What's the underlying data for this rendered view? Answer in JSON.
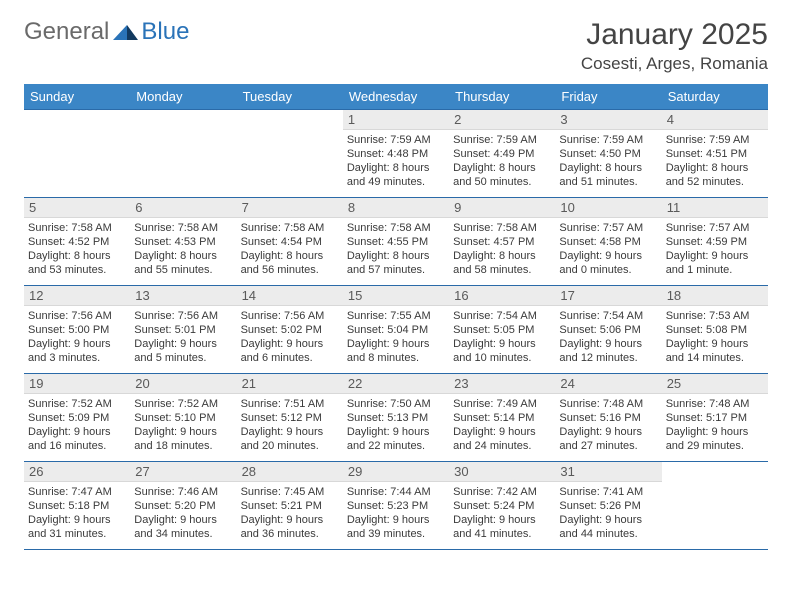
{
  "logo": {
    "general": "General",
    "blue": "Blue"
  },
  "header": {
    "month_title": "January 2025",
    "location": "Cosesti, Arges, Romania"
  },
  "colors": {
    "header_bg": "#3b86c6",
    "header_text": "#ffffff",
    "rule": "#2a6aa8",
    "daynum_bg": "#ececec",
    "body_text": "#3a3a3a",
    "logo_blue": "#2a73b8",
    "logo_gray": "#6a6a6a"
  },
  "daynames": [
    "Sunday",
    "Monday",
    "Tuesday",
    "Wednesday",
    "Thursday",
    "Friday",
    "Saturday"
  ],
  "weeks": [
    [
      null,
      null,
      null,
      {
        "n": "1",
        "sr": "7:59 AM",
        "ss": "4:48 PM",
        "dl": "8 hours and 49 minutes."
      },
      {
        "n": "2",
        "sr": "7:59 AM",
        "ss": "4:49 PM",
        "dl": "8 hours and 50 minutes."
      },
      {
        "n": "3",
        "sr": "7:59 AM",
        "ss": "4:50 PM",
        "dl": "8 hours and 51 minutes."
      },
      {
        "n": "4",
        "sr": "7:59 AM",
        "ss": "4:51 PM",
        "dl": "8 hours and 52 minutes."
      }
    ],
    [
      {
        "n": "5",
        "sr": "7:58 AM",
        "ss": "4:52 PM",
        "dl": "8 hours and 53 minutes."
      },
      {
        "n": "6",
        "sr": "7:58 AM",
        "ss": "4:53 PM",
        "dl": "8 hours and 55 minutes."
      },
      {
        "n": "7",
        "sr": "7:58 AM",
        "ss": "4:54 PM",
        "dl": "8 hours and 56 minutes."
      },
      {
        "n": "8",
        "sr": "7:58 AM",
        "ss": "4:55 PM",
        "dl": "8 hours and 57 minutes."
      },
      {
        "n": "9",
        "sr": "7:58 AM",
        "ss": "4:57 PM",
        "dl": "8 hours and 58 minutes."
      },
      {
        "n": "10",
        "sr": "7:57 AM",
        "ss": "4:58 PM",
        "dl": "9 hours and 0 minutes."
      },
      {
        "n": "11",
        "sr": "7:57 AM",
        "ss": "4:59 PM",
        "dl": "9 hours and 1 minute."
      }
    ],
    [
      {
        "n": "12",
        "sr": "7:56 AM",
        "ss": "5:00 PM",
        "dl": "9 hours and 3 minutes."
      },
      {
        "n": "13",
        "sr": "7:56 AM",
        "ss": "5:01 PM",
        "dl": "9 hours and 5 minutes."
      },
      {
        "n": "14",
        "sr": "7:56 AM",
        "ss": "5:02 PM",
        "dl": "9 hours and 6 minutes."
      },
      {
        "n": "15",
        "sr": "7:55 AM",
        "ss": "5:04 PM",
        "dl": "9 hours and 8 minutes."
      },
      {
        "n": "16",
        "sr": "7:54 AM",
        "ss": "5:05 PM",
        "dl": "9 hours and 10 minutes."
      },
      {
        "n": "17",
        "sr": "7:54 AM",
        "ss": "5:06 PM",
        "dl": "9 hours and 12 minutes."
      },
      {
        "n": "18",
        "sr": "7:53 AM",
        "ss": "5:08 PM",
        "dl": "9 hours and 14 minutes."
      }
    ],
    [
      {
        "n": "19",
        "sr": "7:52 AM",
        "ss": "5:09 PM",
        "dl": "9 hours and 16 minutes."
      },
      {
        "n": "20",
        "sr": "7:52 AM",
        "ss": "5:10 PM",
        "dl": "9 hours and 18 minutes."
      },
      {
        "n": "21",
        "sr": "7:51 AM",
        "ss": "5:12 PM",
        "dl": "9 hours and 20 minutes."
      },
      {
        "n": "22",
        "sr": "7:50 AM",
        "ss": "5:13 PM",
        "dl": "9 hours and 22 minutes."
      },
      {
        "n": "23",
        "sr": "7:49 AM",
        "ss": "5:14 PM",
        "dl": "9 hours and 24 minutes."
      },
      {
        "n": "24",
        "sr": "7:48 AM",
        "ss": "5:16 PM",
        "dl": "9 hours and 27 minutes."
      },
      {
        "n": "25",
        "sr": "7:48 AM",
        "ss": "5:17 PM",
        "dl": "9 hours and 29 minutes."
      }
    ],
    [
      {
        "n": "26",
        "sr": "7:47 AM",
        "ss": "5:18 PM",
        "dl": "9 hours and 31 minutes."
      },
      {
        "n": "27",
        "sr": "7:46 AM",
        "ss": "5:20 PM",
        "dl": "9 hours and 34 minutes."
      },
      {
        "n": "28",
        "sr": "7:45 AM",
        "ss": "5:21 PM",
        "dl": "9 hours and 36 minutes."
      },
      {
        "n": "29",
        "sr": "7:44 AM",
        "ss": "5:23 PM",
        "dl": "9 hours and 39 minutes."
      },
      {
        "n": "30",
        "sr": "7:42 AM",
        "ss": "5:24 PM",
        "dl": "9 hours and 41 minutes."
      },
      {
        "n": "31",
        "sr": "7:41 AM",
        "ss": "5:26 PM",
        "dl": "9 hours and 44 minutes."
      },
      null
    ]
  ],
  "labels": {
    "sunrise": "Sunrise:",
    "sunset": "Sunset:",
    "daylight": "Daylight:"
  }
}
